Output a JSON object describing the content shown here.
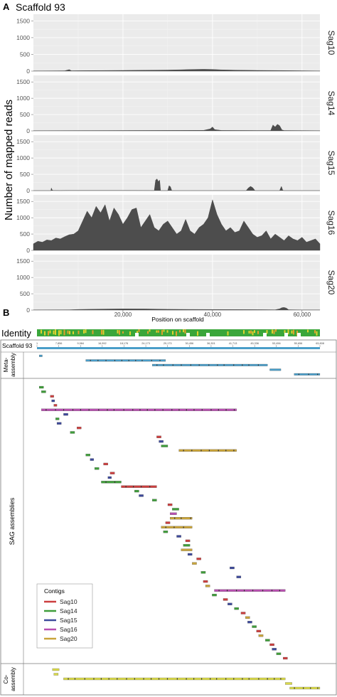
{
  "panel_a": {
    "letter": "A",
    "title": "Scaffold 93",
    "ylabel": "Number of mapped reads",
    "xlabel": "Position on scaffold"
  },
  "panel_b": {
    "letter": "B",
    "identity_label": "Identity",
    "scaffold_label": "Scaffold 93",
    "scaffold_ticks": [
      "1",
      "7,856",
      "9,984",
      "16,992",
      "18,176",
      "24,173",
      "29,173",
      "30,456",
      "36,301",
      "41,713",
      "45,336",
      "53,456",
      "55,656",
      "63,808"
    ],
    "meta_label_1": "Meta-",
    "meta_label_2": "assembly",
    "sag_label": "SAG assemblies",
    "co_label_1": "Co-",
    "co_label_2": "assembly",
    "legend": {
      "title": "Contigs",
      "items": [
        {
          "label": "Sag10",
          "color": "#cc3f3f"
        },
        {
          "label": "Sag14",
          "color": "#3f9e3a"
        },
        {
          "label": "Sag15",
          "color": "#3e4a9c"
        },
        {
          "label": "Sag16",
          "color": "#b84fb0"
        },
        {
          "label": "Sag20",
          "color": "#c9a43a"
        }
      ]
    },
    "colors": {
      "scaffold": "#4a9ec9",
      "meta": "#4a9ec9",
      "co": "#d9d94a",
      "Sag10": "#cc3f3f",
      "Sag14": "#3f9e3a",
      "Sag15": "#3e4a9c",
      "Sag16": "#b84fb0",
      "Sag20": "#c9a43a"
    },
    "meta_contigs": [
      [
        500,
        1200
      ],
      [
        11000,
        29000
      ],
      [
        26000,
        52000
      ],
      [
        52500,
        55000
      ],
      [
        58000,
        63800
      ]
    ],
    "sag_contigs": [
      [
        "Sag14",
        500,
        1500
      ],
      [
        "Sag14",
        1000,
        2000
      ],
      [
        "Sag10",
        3000,
        3800
      ],
      [
        "Sag15",
        3300,
        4000
      ],
      [
        "Sag10",
        3800,
        4500
      ],
      [
        "Sag16",
        1000,
        45000
      ],
      [
        "Sag15",
        6000,
        7000
      ],
      [
        "Sag14",
        4200,
        5000
      ],
      [
        "Sag15",
        4500,
        5500
      ],
      [
        "Sag10",
        9000,
        10000
      ],
      [
        "Sag14",
        7500,
        8500
      ],
      [
        "Sag10",
        27000,
        28000
      ],
      [
        "Sag15",
        27500,
        28500
      ],
      [
        "Sag14",
        28000,
        29500
      ],
      [
        "Sag20",
        32000,
        45000
      ],
      [
        "Sag14",
        11000,
        12000
      ],
      [
        "Sag15",
        12000,
        12800
      ],
      [
        "Sag10",
        15000,
        16000
      ],
      [
        "Sag14",
        13000,
        14000
      ],
      [
        "Sag10",
        16500,
        17500
      ],
      [
        "Sag15",
        16000,
        16800
      ],
      [
        "Sag14",
        14500,
        19000
      ],
      [
        "Sag10",
        19000,
        27000
      ],
      [
        "Sag14",
        22000,
        23000
      ],
      [
        "Sag15",
        23000,
        24000
      ],
      [
        "Sag14",
        26000,
        27000
      ],
      [
        "Sag10",
        29500,
        30500
      ],
      [
        "Sag14",
        30500,
        32000
      ],
      [
        "Sag16",
        30000,
        31500
      ],
      [
        "Sag20",
        30000,
        35000
      ],
      [
        "Sag10",
        29000,
        30000
      ],
      [
        "Sag20",
        28000,
        35000
      ],
      [
        "Sag14",
        28500,
        29500
      ],
      [
        "Sag15",
        31500,
        32500
      ],
      [
        "Sag10",
        33500,
        34500
      ],
      [
        "Sag14",
        33000,
        34500
      ],
      [
        "Sag20",
        32500,
        35000
      ],
      [
        "Sag15",
        34000,
        35000
      ],
      [
        "Sag10",
        36000,
        37000
      ],
      [
        "Sag20",
        35000,
        36000
      ],
      [
        "Sag15",
        43500,
        44500
      ],
      [
        "Sag14",
        37000,
        38000
      ],
      [
        "Sag15",
        45000,
        46000
      ],
      [
        "Sag10",
        37500,
        38500
      ],
      [
        "Sag20",
        38000,
        39000
      ],
      [
        "Sag16",
        40000,
        56000
      ],
      [
        "Sag14",
        39500,
        40500
      ],
      [
        "Sag10",
        42000,
        43000
      ],
      [
        "Sag15",
        43000,
        44000
      ],
      [
        "Sag14",
        44500,
        45500
      ],
      [
        "Sag10",
        46000,
        47000
      ],
      [
        "Sag20",
        47000,
        48000
      ],
      [
        "Sag15",
        47500,
        48500
      ],
      [
        "Sag14",
        48500,
        49500
      ],
      [
        "Sag10",
        49500,
        50500
      ],
      [
        "Sag20",
        50000,
        51000
      ],
      [
        "Sag14",
        51500,
        52500
      ],
      [
        "Sag10",
        52500,
        53500
      ],
      [
        "Sag15",
        53000,
        54000
      ],
      [
        "Sag14",
        54000,
        55000
      ],
      [
        "Sag10",
        55500,
        56500
      ]
    ],
    "co_contigs": [
      [
        3500,
        5000
      ],
      [
        3800,
        4800
      ],
      [
        6000,
        56000
      ],
      [
        56000,
        57500
      ],
      [
        57000,
        63800
      ]
    ]
  },
  "chart_data": [
    {
      "type": "area",
      "panel": "Sag10",
      "ylim": [
        0,
        1700
      ],
      "yticks": [
        0,
        500,
        1000,
        1500
      ],
      "xlim": [
        0,
        64000
      ],
      "xticks": [
        20000,
        40000,
        60000
      ],
      "xtick_labels": [
        "20,000",
        "40,000",
        "60,000"
      ],
      "x": [
        0,
        5000,
        7000,
        8000,
        8500,
        10000,
        15000,
        20000,
        25000,
        30000,
        33000,
        35000,
        38000,
        40000,
        42000,
        45000,
        50000,
        55000,
        60000,
        64000
      ],
      "y": [
        5,
        8,
        10,
        45,
        10,
        12,
        18,
        22,
        28,
        32,
        40,
        48,
        55,
        50,
        38,
        30,
        22,
        16,
        10,
        5
      ]
    },
    {
      "type": "area",
      "panel": "Sag14",
      "ylim": [
        0,
        1700
      ],
      "yticks": [
        0,
        500,
        1000,
        1500
      ],
      "xlim": [
        0,
        64000
      ],
      "x": [
        0,
        10000,
        20000,
        30000,
        38000,
        39500,
        40000,
        40500,
        42000,
        50000,
        53000,
        53500,
        54000,
        54500,
        55000,
        55500,
        56000,
        60000,
        64000
      ],
      "y": [
        5,
        8,
        10,
        12,
        15,
        60,
        120,
        40,
        12,
        10,
        10,
        180,
        120,
        200,
        160,
        30,
        10,
        8,
        5
      ]
    },
    {
      "type": "area",
      "panel": "Sag15",
      "ylim": [
        0,
        1700
      ],
      "yticks": [
        0,
        500,
        1000,
        1500
      ],
      "xlim": [
        0,
        64000
      ],
      "x": [
        0,
        3900,
        4000,
        4200,
        4400,
        6000,
        8000,
        20000,
        27000,
        27300,
        27600,
        27900,
        28200,
        28400,
        28700,
        29000,
        30000,
        30300,
        30600,
        30900,
        35000,
        47500,
        48000,
        48500,
        49000,
        49500,
        55000,
        55400,
        55700,
        56000,
        64000
      ],
      "y": [
        0,
        0,
        80,
        20,
        5,
        3,
        5,
        4,
        3,
        320,
        360,
        280,
        320,
        0,
        0,
        0,
        0,
        150,
        120,
        0,
        0,
        0,
        80,
        130,
        90,
        0,
        0,
        130,
        10,
        0,
        0
      ]
    },
    {
      "type": "area",
      "panel": "Sag16",
      "ylim": [
        0,
        1700
      ],
      "yticks": [
        0,
        500,
        1000,
        1500
      ],
      "xlim": [
        0,
        64000
      ],
      "x": [
        0,
        1000,
        2000,
        3000,
        4000,
        5000,
        6000,
        7000,
        8000,
        9000,
        10000,
        11000,
        12000,
        13000,
        14000,
        15000,
        16000,
        17000,
        18000,
        19000,
        20000,
        21000,
        22000,
        23000,
        24000,
        25000,
        26000,
        27000,
        28000,
        29000,
        30000,
        31000,
        32000,
        33000,
        34000,
        35000,
        36000,
        37000,
        38000,
        39000,
        40000,
        41000,
        42000,
        43000,
        44000,
        45000,
        46000,
        47000,
        48000,
        49000,
        50000,
        51000,
        52000,
        53000,
        54000,
        55000,
        56000,
        57000,
        58000,
        59000,
        60000,
        61000,
        62000,
        63000,
        64000
      ],
      "y": [
        200,
        280,
        250,
        320,
        300,
        380,
        350,
        420,
        480,
        500,
        600,
        900,
        1200,
        1000,
        1350,
        1150,
        1400,
        900,
        1300,
        1100,
        800,
        1000,
        1250,
        1300,
        700,
        900,
        1100,
        700,
        600,
        800,
        900,
        700,
        500,
        600,
        950,
        600,
        500,
        700,
        800,
        1000,
        1550,
        1100,
        800,
        600,
        700,
        550,
        600,
        900,
        700,
        500,
        400,
        450,
        600,
        350,
        500,
        400,
        300,
        450,
        350,
        300,
        400,
        250,
        300,
        350,
        200
      ]
    },
    {
      "type": "area",
      "panel": "Sag20",
      "ylim": [
        0,
        1700
      ],
      "yticks": [
        0,
        500,
        1000,
        1500
      ],
      "xlim": [
        0,
        64000
      ],
      "x": [
        0,
        8000,
        10000,
        15000,
        20000,
        25000,
        30000,
        35000,
        40000,
        45000,
        50000,
        54000,
        55000,
        55500,
        56000,
        56500,
        57000,
        60000,
        64000
      ],
      "y": [
        5,
        8,
        20,
        30,
        38,
        35,
        25,
        20,
        18,
        15,
        12,
        8,
        40,
        75,
        80,
        60,
        10,
        5,
        5
      ]
    }
  ]
}
